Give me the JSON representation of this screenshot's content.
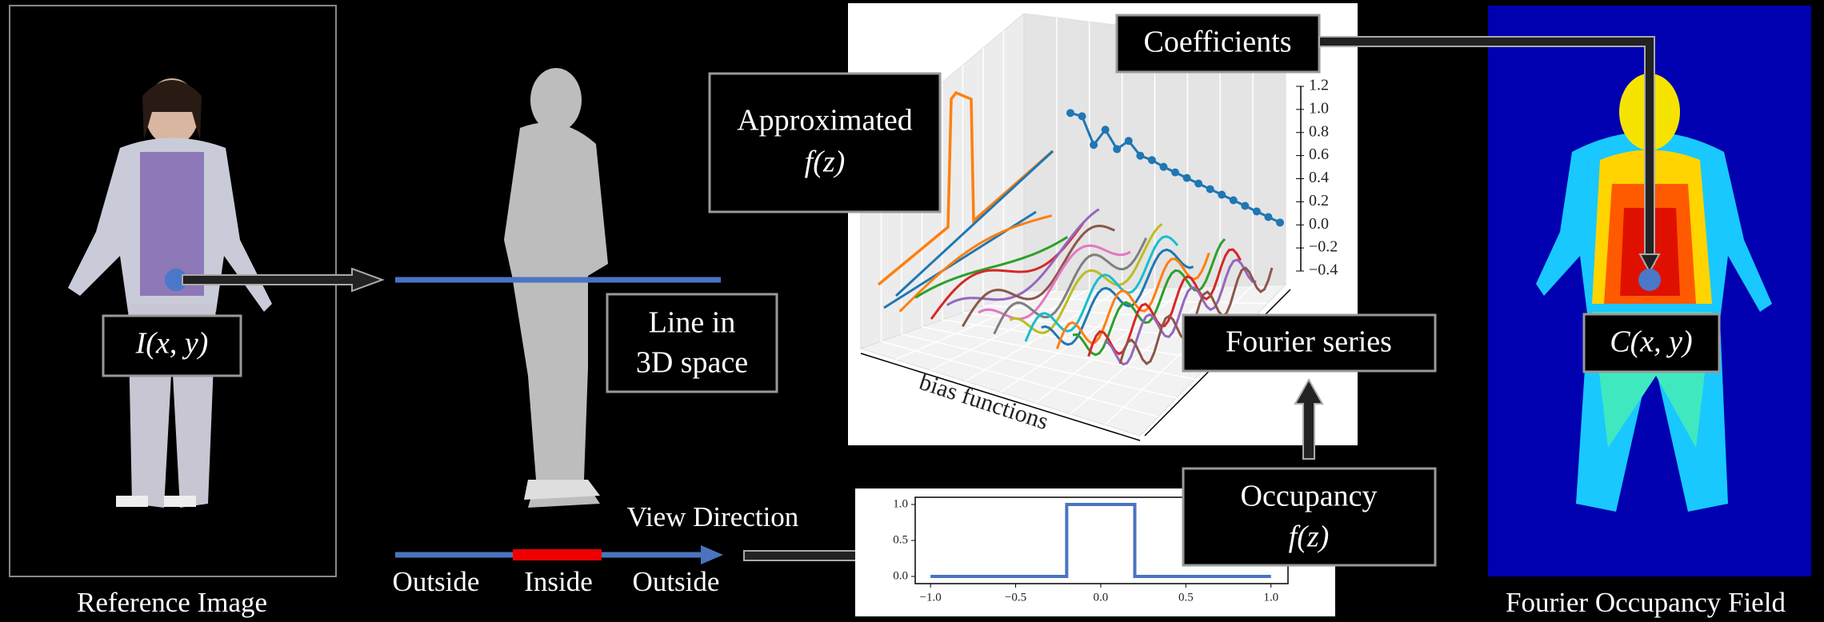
{
  "reference": {
    "caption": "Reference Image",
    "label": "I(x, y)"
  },
  "line": {
    "label_lines": [
      "Line in",
      "3D space"
    ],
    "view_direction": "View Direction",
    "segments": [
      "Outside",
      "Inside",
      "Outside"
    ]
  },
  "approximated": {
    "label_lines": [
      "Approximated",
      "f(z)"
    ]
  },
  "coefficients": {
    "label": "Coefficients",
    "values": [
      0.9,
      0.88,
      0.64,
      0.78,
      0.62,
      0.7,
      0.58,
      0.55,
      0.5,
      0.46,
      0.42,
      0.38,
      0.34,
      0.3,
      0.26,
      0.22,
      0.18,
      0.14,
      0.1
    ]
  },
  "basis_plot": {
    "axis_label": "bias functions",
    "zlim": [
      -0.4,
      1.2
    ],
    "zticks": [
      1.2,
      {
        "value": 1,
        "label": "1.0"
      },
      0.8,
      0.6,
      0.4,
      0.2,
      {
        "value": 0,
        "label": "0.0"
      },
      {
        "value": -0.2,
        "label": "−0.2"
      },
      {
        "value": -0.4,
        "label": "−0.4"
      }
    ]
  },
  "fourier_series": {
    "label": "Fourier series"
  },
  "occupancy": {
    "label_lines": [
      "Occupancy",
      "f(z)"
    ],
    "xlim": [
      -1.09,
      1.1
    ],
    "ylim": [
      -0.1,
      1.1
    ],
    "xticks": [
      {
        "value": -1,
        "label": "−1.0"
      },
      {
        "value": -0.5,
        "label": "−0.5"
      },
      {
        "value": 0,
        "label": "0.0"
      },
      {
        "value": 0.5,
        "label": "0.5"
      },
      {
        "value": 1,
        "label": "1.0"
      }
    ],
    "yticks": [
      {
        "value": 0,
        "label": "0.0"
      },
      {
        "value": 0.5,
        "label": "0.5"
      },
      {
        "value": 1,
        "label": "1.0"
      }
    ],
    "x": [
      -1,
      -0.2,
      -0.2,
      0.2,
      0.2,
      1
    ],
    "y": [
      0,
      0,
      1,
      1,
      0,
      0
    ]
  },
  "field": {
    "caption": "Fourier Occupancy Field",
    "label": "C(x, y)"
  }
}
